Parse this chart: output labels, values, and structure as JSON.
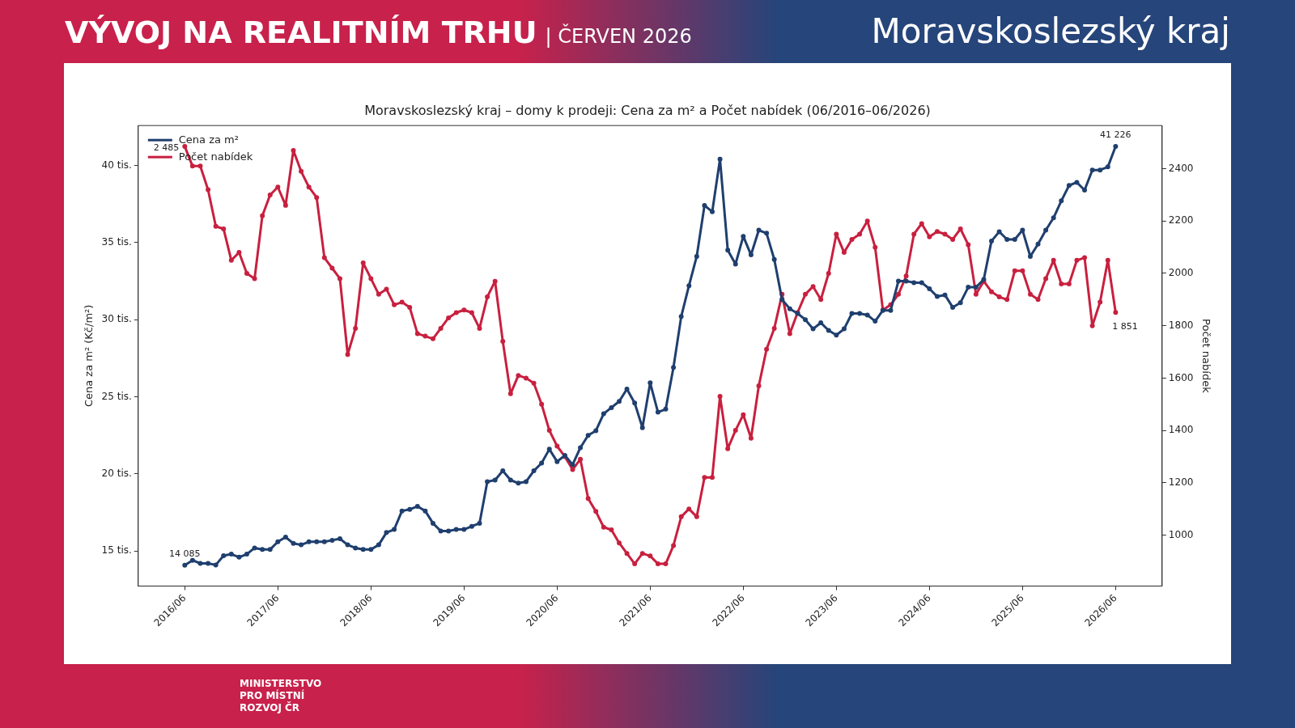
{
  "chart_data": {
    "type": "line",
    "title": "Moravskoslezský kraj – domy k prodeji: Cena za m² a Počet nabídek (06/2016–06/2026)",
    "ylabel": "Cena za m² (Kč/m²)",
    "y2label": "Počet nabídek",
    "annotations": [
      "VÝVOJ NA REALITNÍM TRHU",
      "| ČERVEN 2026",
      "Moravskoslezský kraj",
      "MINISTERSTVO PRO MÍSTNÍ ROZVOJ ČR",
      {
        "text": "14 085",
        "x": "2016/06",
        "y": 14.085
      },
      {
        "text": "41 226",
        "x": "2026/06",
        "y": 41.226
      }
    ],
    "categories": [
      "2016/06",
      null,
      null,
      null,
      null,
      null,
      null,
      null,
      null,
      null,
      null,
      null,
      "2017/06",
      null,
      null,
      null,
      null,
      null,
      null,
      null,
      null,
      null,
      null,
      null,
      "2018/06",
      null,
      null,
      null,
      null,
      null,
      null,
      null,
      null,
      null,
      null,
      null,
      "2019/06",
      null,
      null,
      null,
      null,
      null,
      null,
      null,
      null,
      null,
      null,
      null,
      "2020/06",
      null,
      null,
      null,
      null,
      null,
      null,
      null,
      null,
      null,
      null,
      null,
      "2021/06",
      null,
      null,
      null,
      null,
      null,
      null,
      null,
      null,
      null,
      null,
      null,
      "2022/06",
      null,
      null,
      null,
      null,
      null,
      null,
      null,
      null,
      null,
      null,
      null,
      "2023/06",
      null,
      null,
      null,
      null,
      null,
      null,
      null,
      null,
      null,
      null,
      null,
      "2024/06",
      null,
      null,
      null,
      null,
      null,
      null,
      null,
      null,
      null,
      null,
      null,
      "2025/06",
      null,
      null,
      null,
      null,
      null,
      null,
      null,
      null,
      null,
      null,
      null,
      "2026/06"
    ],
    "series": [
      {
        "name": "Cena za m²",
        "color": "#1f3f6e",
        "values": [
          14.085,
          14.4,
          14.2,
          14.2,
          14.1,
          14.7,
          14.8,
          14.6,
          14.8,
          15.2,
          15.1,
          15.1,
          15.6,
          15.9,
          15.5,
          15.4,
          15.6,
          15.6,
          15.6,
          15.7,
          15.8,
          15.4,
          15.2,
          15.1,
          15.1,
          15.4,
          16.2,
          16.4,
          17.6,
          17.7,
          17.9,
          17.6,
          16.8,
          16.3,
          16.3,
          16.4,
          16.4,
          16.6,
          16.8,
          19.5,
          19.6,
          20.2,
          19.6,
          19.4,
          19.5,
          20.2,
          20.7,
          21.6,
          20.8,
          21.2,
          20.6,
          21.7,
          22.5,
          22.8,
          23.9,
          24.3,
          24.7,
          25.5,
          24.6,
          23.0,
          25.9,
          24.0,
          24.2,
          26.9,
          30.2,
          32.2,
          34.1,
          37.4,
          37.0,
          40.4,
          34.5,
          33.6,
          35.4,
          34.2,
          35.8,
          35.6,
          33.9,
          31.3,
          30.7,
          30.4,
          30.0,
          29.4,
          29.8,
          29.3,
          29.0,
          29.4,
          30.4,
          30.4,
          30.3,
          29.9,
          30.6,
          30.6,
          32.5,
          32.5,
          32.4,
          32.4,
          32.0,
          31.5,
          31.6,
          30.8,
          31.1,
          32.1,
          32.1,
          32.6,
          35.1,
          35.7,
          35.2,
          35.2,
          35.8,
          34.1,
          34.9,
          35.8,
          36.6,
          37.7,
          38.7,
          38.9,
          38.4,
          39.7,
          39.7,
          39.9,
          41.226
        ]
      },
      {
        "name": "Počet nabídek",
        "color": "#c8203f",
        "axis": "y2",
        "values": [
          2485,
          2410,
          2410,
          2320,
          2180,
          2170,
          2050,
          2080,
          2000,
          1980,
          2220,
          2300,
          2330,
          2260,
          2470,
          2390,
          2330,
          2290,
          2060,
          2020,
          1980,
          1690,
          1790,
          2040,
          1980,
          1920,
          1940,
          1880,
          1890,
          1870,
          1770,
          1760,
          1750,
          1790,
          1830,
          1850,
          1860,
          1850,
          1790,
          1910,
          1970,
          1740,
          1540,
          1610,
          1600,
          1580,
          1500,
          1400,
          1340,
          1300,
          1250,
          1290,
          1140,
          1090,
          1030,
          1020,
          970,
          930,
          890,
          930,
          920,
          890,
          890,
          960,
          1070,
          1100,
          1070,
          1220,
          1220,
          1530,
          1330,
          1400,
          1460,
          1370,
          1570,
          1710,
          1790,
          1920,
          1770,
          1850,
          1920,
          1950,
          1900,
          2000,
          2150,
          2080,
          2130,
          2150,
          2200,
          2100,
          1860,
          1880,
          1920,
          1990,
          2150,
          2190,
          2140,
          2160,
          2150,
          2130,
          2170,
          2110,
          1920,
          1970,
          1930,
          1910,
          1900,
          2010,
          2010,
          1920,
          1900,
          1980,
          2050,
          1960,
          1960,
          2050,
          2060,
          1800,
          1890,
          2050,
          1851
        ],
        "value_labels": [
          "2 485",
          null,
          null,
          null,
          null,
          null,
          null,
          null,
          null,
          null,
          null,
          null,
          null,
          null,
          null,
          null,
          null,
          null,
          null,
          null,
          null,
          null,
          null,
          null,
          null,
          null,
          null,
          null,
          null,
          null,
          null,
          null,
          null,
          null,
          null,
          null,
          null,
          null,
          null,
          null,
          null,
          null,
          null,
          null,
          null,
          null,
          null,
          null,
          null,
          null,
          null,
          null,
          null,
          null,
          null,
          null,
          null,
          null,
          null,
          null,
          null,
          null,
          null,
          null,
          null,
          null,
          null,
          null,
          null,
          null,
          null,
          null,
          null,
          null,
          null,
          null,
          null,
          null,
          null,
          null,
          null,
          null,
          null,
          null,
          null,
          null,
          null,
          null,
          null,
          null,
          null,
          null,
          null,
          null,
          null,
          null,
          null,
          null,
          null,
          null,
          null,
          null,
          null,
          null,
          null,
          null,
          null,
          null,
          null,
          null,
          null,
          null,
          null,
          null,
          null,
          null,
          null,
          null,
          null,
          null,
          "1 851"
        ]
      }
    ],
    "ylim": [
      12.728,
      42.583
    ],
    "yticks": [
      {
        "value": 15,
        "label": "15 tis."
      },
      {
        "value": 20,
        "label": "20 tis."
      },
      {
        "value": 25,
        "label": "25 tis."
      },
      {
        "value": 30,
        "label": "30 tis."
      },
      {
        "value": 35,
        "label": "35 tis."
      },
      {
        "value": 40,
        "label": "40 tis."
      }
    ],
    "y2lim": [
      805,
      2565
    ],
    "y2ticks": [
      1000,
      1200,
      1400,
      1600,
      1800,
      2000,
      2200,
      2400
    ],
    "legend": "top left",
    "marker": "circle",
    "line_style": "solid",
    "grid": false
  }
}
